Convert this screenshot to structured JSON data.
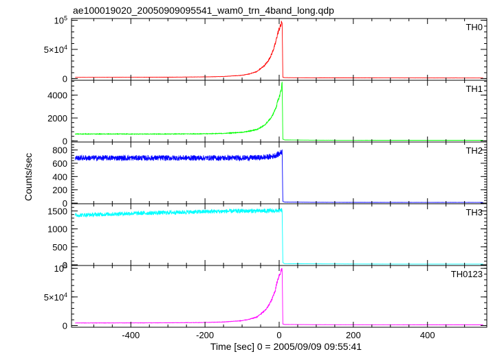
{
  "chart_data": {
    "type": "line",
    "title": "ae100019020_20050909095541_wam0_trn_4band_long.qdp",
    "xlabel": "Time [sec] 0 = 2005/09/09 09:55:41",
    "ylabel": "Counts/sec",
    "xlim": [
      -560,
      560
    ],
    "x_ticks": [
      -400,
      -200,
      0,
      200,
      400
    ],
    "x_tick_labels": [
      "-400",
      "-200",
      "0",
      "200",
      "400"
    ],
    "grid": false,
    "panels": [
      {
        "name": "TH0",
        "color": "#ff0000",
        "ylim": [
          -3000,
          103000
        ],
        "y_ticks": [
          0,
          50000,
          100000
        ],
        "y_tick_labels": [
          "0",
          "5×10^4",
          "10^5"
        ],
        "x": [
          -550,
          -400,
          -300,
          -200,
          -150,
          -100,
          -80,
          -60,
          -40,
          -30,
          -20,
          -10,
          -5,
          0,
          5,
          8,
          10,
          15,
          100,
          300,
          550
        ],
        "y": [
          2000,
          2100,
          2300,
          2800,
          3500,
          5500,
          8000,
          12000,
          22000,
          30000,
          42000,
          60000,
          75000,
          85000,
          92000,
          98000,
          2000,
          1500,
          1200,
          1000,
          900
        ],
        "noise": 0.05
      },
      {
        "name": "TH1",
        "color": "#00ff00",
        "ylim": [
          -100,
          5300
        ],
        "y_ticks": [
          0,
          2000,
          4000
        ],
        "y_tick_labels": [
          "0",
          "2000",
          "4000"
        ],
        "x": [
          -550,
          -400,
          -300,
          -200,
          -150,
          -100,
          -80,
          -60,
          -40,
          -30,
          -20,
          -10,
          -5,
          0,
          5,
          8,
          10,
          15,
          100,
          300,
          550
        ],
        "y": [
          600,
          600,
          600,
          620,
          650,
          750,
          850,
          1000,
          1350,
          1700,
          2100,
          2800,
          3300,
          3800,
          4400,
          5100,
          150,
          80,
          60,
          50,
          50
        ],
        "noise": 0.04
      },
      {
        "name": "TH2",
        "color": "#0000ff",
        "ylim": [
          -10,
          920
        ],
        "y_ticks": [
          0,
          200,
          400,
          600,
          800
        ],
        "y_tick_labels": [
          "0",
          "200",
          "400",
          "600",
          "800"
        ],
        "x": [
          -550,
          -400,
          -200,
          -100,
          -50,
          -20,
          0,
          8,
          10,
          15,
          100,
          300,
          550
        ],
        "y": [
          680,
          680,
          680,
          680,
          685,
          700,
          740,
          780,
          25,
          15,
          12,
          10,
          10
        ],
        "noise": 0.06
      },
      {
        "name": "TH3",
        "color": "#00ffff",
        "ylim": [
          -20,
          1700
        ],
        "y_ticks": [
          0,
          500,
          1000,
          1500
        ],
        "y_tick_labels": [
          "0",
          "500",
          "1000",
          "1500"
        ],
        "x": [
          -550,
          -400,
          -200,
          -100,
          -50,
          -20,
          0,
          8,
          10,
          15,
          100,
          300,
          550
        ],
        "y": [
          1380,
          1430,
          1480,
          1500,
          1500,
          1500,
          1510,
          1520,
          60,
          30,
          25,
          20,
          20
        ],
        "noise": 0.04
      },
      {
        "name": "TH0123",
        "color": "#ff00ff",
        "ylim": [
          -3000,
          105000
        ],
        "y_ticks": [
          0,
          50000,
          100000
        ],
        "y_tick_labels": [
          "0",
          "5×10^4",
          "10^5"
        ],
        "x": [
          -550,
          -400,
          -300,
          -200,
          -150,
          -100,
          -80,
          -60,
          -40,
          -30,
          -20,
          -10,
          -5,
          0,
          5,
          8,
          10,
          15,
          100,
          300,
          550
        ],
        "y": [
          4500,
          4600,
          4800,
          5300,
          6200,
          8500,
          11000,
          15000,
          25000,
          33000,
          45000,
          63000,
          78000,
          88000,
          95000,
          101000,
          2500,
          1800,
          1500,
          1300,
          1200
        ],
        "noise": 0.05
      }
    ]
  }
}
